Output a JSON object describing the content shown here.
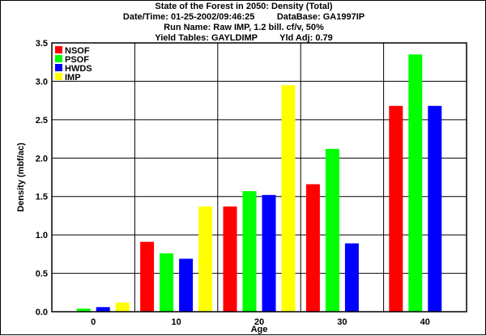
{
  "header": {
    "title": "State of the Forest in 2050: Density (Total)",
    "datetime": "Date/Time: 01-25-2002/09:46:25",
    "database": "DataBase: GA1997IP",
    "run_name": "Run Name: Raw IMP, 1.2 bill. cf/v, 50%",
    "yield_tables": "Yield Tables: GAYLDIMP",
    "yld_adj": "Yld Adj: 0.79"
  },
  "chart_data": {
    "type": "bar",
    "title": "State of the Forest in 2050: Density (Total)",
    "xlabel": "Age",
    "ylabel": "Density (mbf/ac)",
    "categories": [
      "0",
      "10",
      "20",
      "30",
      "40"
    ],
    "ylim": [
      0,
      3.5
    ],
    "yticks": [
      "0.0",
      "0.5",
      "1.0",
      "1.5",
      "2.0",
      "2.5",
      "3.0",
      "3.5"
    ],
    "grid": true,
    "legend_position": "top-left",
    "series": [
      {
        "name": "NSOF",
        "color": "#ff0000",
        "values": [
          0.0,
          0.91,
          1.37,
          1.66,
          2.68
        ]
      },
      {
        "name": "PSOF",
        "color": "#00ff00",
        "values": [
          0.04,
          0.76,
          1.57,
          2.12,
          3.35
        ]
      },
      {
        "name": "HWDS",
        "color": "#0000ff",
        "values": [
          0.06,
          0.69,
          1.52,
          0.89,
          2.68
        ]
      },
      {
        "name": "IMP",
        "color": "#ffff00",
        "values": [
          0.12,
          1.37,
          2.95,
          0.0,
          0.0
        ]
      }
    ]
  }
}
